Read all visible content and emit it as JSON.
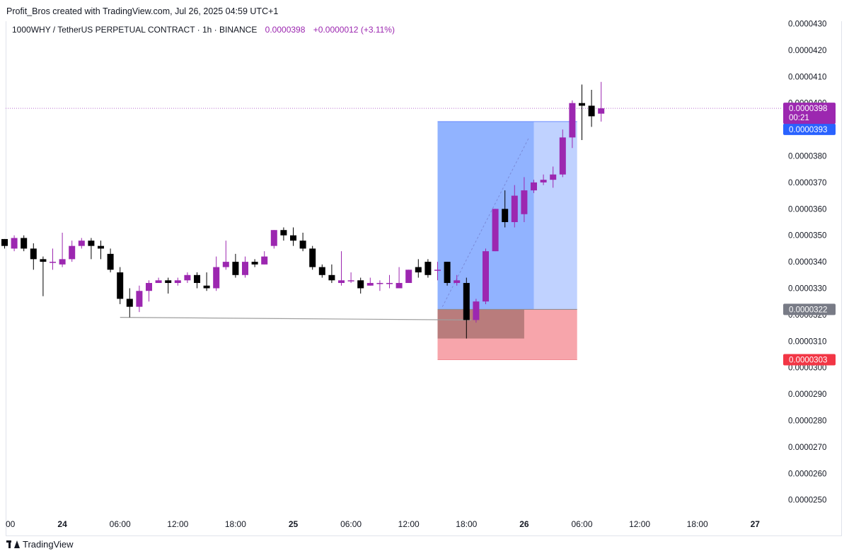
{
  "attribution": "Profit_Bros created with TradingView.com, Jul 26, 2025 04:59 UTC+1",
  "legend": {
    "symbol": "1000WHY / TetherUS PERPETUAL CONTRACT · 1h · BINANCE",
    "price": "0.0000398",
    "change": "+0.0000012 (+3.11%)"
  },
  "brand": {
    "name": "TradingView",
    "icon": "tradingview-logo-icon"
  },
  "colors": {
    "up": "#9c27b0",
    "down": "#000000",
    "profit_zone": "#7ea6ff",
    "profit_zone_light": "#b9cdff",
    "loss_zone": "#f7a0a6",
    "loss_overlap": "#b57979",
    "current_price_label": "#9c27b0",
    "entry_label": "#2962ff",
    "stop_label": "#f23645",
    "target_label": "#787b86"
  },
  "chart_data": {
    "type": "candlestick",
    "title": "1000WHY / TetherUS PERPETUAL CONTRACT · 1h · BINANCE",
    "x_axis_ticks": [
      {
        "label": "00",
        "t": 0,
        "bold": false
      },
      {
        "label": "24",
        "t": 6,
        "bold": true
      },
      {
        "label": "06:00",
        "t": 12,
        "bold": false
      },
      {
        "label": "12:00",
        "t": 18,
        "bold": false
      },
      {
        "label": "18:00",
        "t": 24,
        "bold": false
      },
      {
        "label": "25",
        "t": 30,
        "bold": true
      },
      {
        "label": "06:00",
        "t": 36,
        "bold": false
      },
      {
        "label": "12:00",
        "t": 42,
        "bold": false
      },
      {
        "label": "18:00",
        "t": 48,
        "bold": false
      },
      {
        "label": "26",
        "t": 54,
        "bold": true
      },
      {
        "label": "06:00",
        "t": 60,
        "bold": false
      },
      {
        "label": "12:00",
        "t": 66,
        "bold": false
      },
      {
        "label": "18:00",
        "t": 72,
        "bold": false
      },
      {
        "label": "27",
        "t": 78,
        "bold": true
      }
    ],
    "y_axis_ticks": [
      "0.0000430",
      "0.0000420",
      "0.0000410",
      "0.0000400",
      "0.0000390",
      "0.0000380",
      "0.0000370",
      "0.0000360",
      "0.0000350",
      "0.0000340",
      "0.0000330",
      "0.0000320",
      "0.0000310",
      "0.0000300",
      "0.0000290",
      "0.0000280",
      "0.0000270",
      "0.0000260",
      "0.0000250"
    ],
    "y_range": [
      2.47e-05,
      4.32e-05
    ],
    "candles": [
      [
        3.486e-05,
        3.486e-05,
        3.46e-05,
        3.45e-05
      ],
      [
        3.45e-05,
        3.5e-05,
        3.49e-05,
        3.44e-05
      ],
      [
        3.49e-05,
        3.5e-05,
        3.45e-05,
        3.44e-05
      ],
      [
        3.45e-05,
        3.47e-05,
        3.41e-05,
        3.37e-05
      ],
      [
        3.41e-05,
        3.42e-05,
        3.4e-05,
        3.27e-05
      ],
      [
        3.4e-05,
        3.45e-05,
        3.4e-05,
        3.37e-05
      ],
      [
        3.39e-05,
        3.51e-05,
        3.41e-05,
        3.38e-05
      ],
      [
        3.41e-05,
        3.48e-05,
        3.46e-05,
        3.4e-05
      ],
      [
        3.46e-05,
        3.49e-05,
        3.48e-05,
        3.45e-05
      ],
      [
        3.48e-05,
        3.49e-05,
        3.46e-05,
        3.41e-05
      ],
      [
        3.46e-05,
        3.48e-05,
        3.45e-05,
        3.41e-05
      ],
      [
        3.43e-05,
        3.45e-05,
        3.37e-05,
        3.36e-05
      ],
      [
        3.36e-05,
        3.38e-05,
        3.26e-05,
        3.24e-05
      ],
      [
        3.26e-05,
        3.3e-05,
        3.23e-05,
        3.19e-05
      ],
      [
        3.23e-05,
        3.31e-05,
        3.29e-05,
        3.21e-05
      ],
      [
        3.29e-05,
        3.33e-05,
        3.32e-05,
        3.25e-05
      ],
      [
        3.32e-05,
        3.34e-05,
        3.33e-05,
        3.32e-05
      ],
      [
        3.33e-05,
        3.34e-05,
        3.32e-05,
        3.28e-05
      ],
      [
        3.32e-05,
        3.34e-05,
        3.33e-05,
        3.31e-05
      ],
      [
        3.33e-05,
        3.36e-05,
        3.35e-05,
        3.32e-05
      ],
      [
        3.35e-05,
        3.36e-05,
        3.32e-05,
        3.3e-05
      ],
      [
        3.31e-05,
        3.36e-05,
        3.3e-05,
        3.29e-05
      ],
      [
        3.3e-05,
        3.42e-05,
        3.38e-05,
        3.29e-05
      ],
      [
        3.38e-05,
        3.48e-05,
        3.4e-05,
        3.37e-05
      ],
      [
        3.4e-05,
        3.43e-05,
        3.35e-05,
        3.34e-05
      ],
      [
        3.35e-05,
        3.42e-05,
        3.4e-05,
        3.34e-05
      ],
      [
        3.4e-05,
        3.41e-05,
        3.39e-05,
        3.38e-05
      ],
      [
        3.39e-05,
        3.44e-05,
        3.42e-05,
        3.39e-05
      ],
      [
        3.46e-05,
        3.52e-05,
        3.52e-05,
        3.45e-05
      ],
      [
        3.52e-05,
        3.53e-05,
        3.5e-05,
        3.48e-05
      ],
      [
        3.5e-05,
        3.53e-05,
        3.48e-05,
        3.46e-05
      ],
      [
        3.48e-05,
        3.51e-05,
        3.45e-05,
        3.44e-05
      ],
      [
        3.45e-05,
        3.46e-05,
        3.38e-05,
        3.37e-05
      ],
      [
        3.38e-05,
        3.39e-05,
        3.35e-05,
        3.34e-05
      ],
      [
        3.35e-05,
        3.39e-05,
        3.33e-05,
        3.32e-05
      ],
      [
        3.32e-05,
        3.44e-05,
        3.33e-05,
        3.31e-05
      ],
      [
        3.33e-05,
        3.36e-05,
        3.33e-05,
        3.32e-05
      ],
      [
        3.33e-05,
        3.34e-05,
        3.3e-05,
        3.28e-05
      ],
      [
        3.31e-05,
        3.34e-05,
        3.32e-05,
        3.31e-05
      ],
      [
        3.32e-05,
        3.33e-05,
        3.32e-05,
        3.29e-05
      ],
      [
        3.32e-05,
        3.35e-05,
        3.32e-05,
        3.3e-05
      ],
      [
        3.3e-05,
        3.38e-05,
        3.32e-05,
        3.31e-05
      ],
      [
        3.32e-05,
        3.37e-05,
        3.37e-05,
        3.32e-05
      ],
      [
        3.38e-05,
        3.41e-05,
        3.36e-05,
        3.34e-05
      ],
      [
        3.4e-05,
        3.41e-05,
        3.35e-05,
        3.34e-05
      ],
      [
        3.37e-05,
        3.4e-05,
        3.37e-05,
        3.33e-05
      ],
      [
        3.4e-05,
        3.4e-05,
        3.32e-05,
        3.31e-05
      ],
      [
        3.32e-05,
        3.35e-05,
        3.33e-05,
        3.31e-05
      ],
      [
        3.32e-05,
        3.34e-05,
        3.18e-05,
        3.11e-05
      ],
      [
        3.18e-05,
        3.26e-05,
        3.25e-05,
        3.17e-05
      ],
      [
        3.25e-05,
        3.45e-05,
        3.44e-05,
        3.24e-05
      ],
      [
        3.44e-05,
        3.6e-05,
        3.6e-05,
        3.44e-05
      ],
      [
        3.6e-05,
        3.67e-05,
        3.55e-05,
        3.53e-05
      ],
      [
        3.55e-05,
        3.69e-05,
        3.65e-05,
        3.53e-05
      ],
      [
        3.58e-05,
        3.72e-05,
        3.67e-05,
        3.55e-05
      ],
      [
        3.67e-05,
        3.71e-05,
        3.7e-05,
        3.66e-05
      ],
      [
        3.7e-05,
        3.73e-05,
        3.71e-05,
        3.69e-05
      ],
      [
        3.71e-05,
        3.76e-05,
        3.73e-05,
        3.68e-05
      ],
      [
        3.73e-05,
        3.9e-05,
        3.87e-05,
        3.72e-05
      ],
      [
        3.87e-05,
        4.01e-05,
        4e-05,
        3.83e-05
      ],
      [
        4e-05,
        4.07e-05,
        3.99e-05,
        3.86e-05
      ],
      [
        3.99e-05,
        4.05e-05,
        3.95e-05,
        3.91e-05
      ],
      [
        3.96e-05,
        4.08e-05,
        3.98e-05,
        3.93e-05
      ]
    ],
    "position": {
      "entry": "0.0000322",
      "target": "0.0000393",
      "stop": "0.0000303",
      "current_price": "0.0000398",
      "countdown": "00:21"
    }
  }
}
